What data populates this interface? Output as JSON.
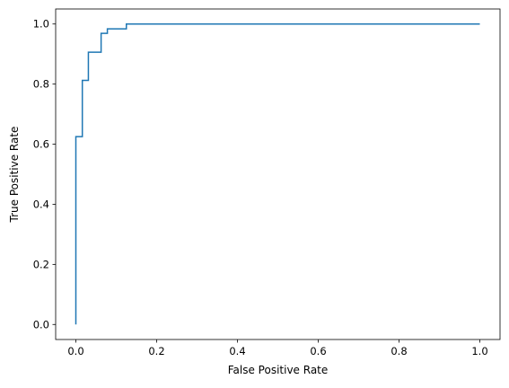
{
  "chart_data": {
    "type": "line",
    "xlabel": "False Positive Rate",
    "ylabel": "True Positive Rate",
    "x": [
      0,
      0,
      0.016,
      0.016,
      0.031,
      0.031,
      0.0625,
      0.0625,
      0.078,
      0.078,
      0.125,
      0.125,
      1
    ],
    "series": [
      {
        "color": "#1f77b4",
        "values": [
          0,
          0.625,
          0.625,
          0.8125,
          0.8125,
          0.906,
          0.906,
          0.969,
          0.969,
          0.984,
          0.984,
          1,
          1
        ]
      }
    ],
    "xlim": [
      -0.05,
      1.05
    ],
    "ylim": [
      -0.05,
      1.05
    ],
    "xticks": [
      {
        "value": 0,
        "label": "0.0"
      },
      0.2,
      0.4,
      0.6,
      0.8,
      {
        "value": 1,
        "label": "1.0"
      }
    ],
    "yticks": [
      {
        "value": 0,
        "label": "0.0"
      },
      0.2,
      0.4,
      0.6,
      0.8,
      {
        "value": 1,
        "label": "1.0"
      }
    ]
  }
}
